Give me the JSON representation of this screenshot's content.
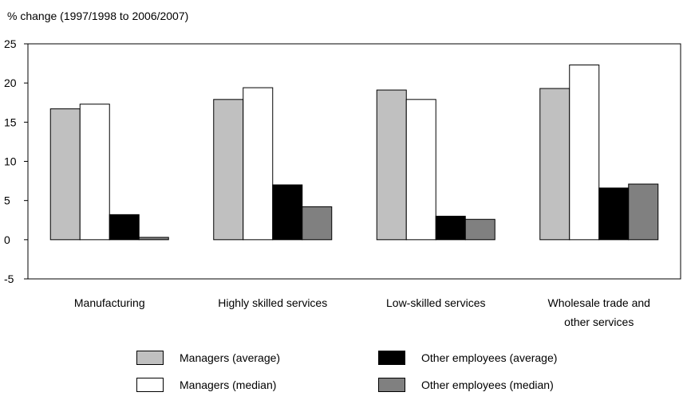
{
  "chart_data": {
    "type": "bar",
    "ylabel": "% change (1997/1998 to 2006/2007)",
    "xlabel": "",
    "title": "",
    "ylim": [
      -5,
      25
    ],
    "yticks": [
      -5,
      0,
      5,
      10,
      15,
      20,
      25
    ],
    "grid": false,
    "legend_position": "bottom",
    "categories": [
      [
        "Manufacturing"
      ],
      [
        "Highly skilled services"
      ],
      [
        "Low-skilled services"
      ],
      [
        "Wholesale trade and",
        "other services"
      ]
    ],
    "series": [
      {
        "name": "Managers (average)",
        "color": "#c0c0c0",
        "values": [
          16.7,
          17.9,
          19.1,
          19.3
        ]
      },
      {
        "name": "Managers (median)",
        "color": "#ffffff",
        "values": [
          17.3,
          19.4,
          17.9,
          22.3
        ]
      },
      {
        "name": "Other employees (average)",
        "color": "#000000",
        "values": [
          3.2,
          7.0,
          3.0,
          6.6
        ]
      },
      {
        "name": "Other employees (median)",
        "color": "#808080",
        "values": [
          0.3,
          4.2,
          2.6,
          7.1
        ]
      }
    ]
  }
}
